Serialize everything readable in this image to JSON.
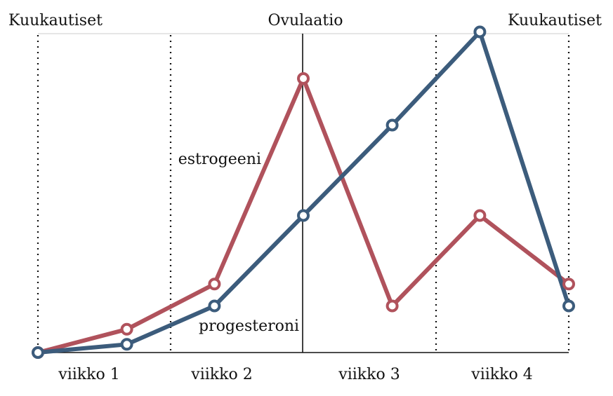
{
  "chart_data": {
    "type": "line",
    "title": "",
    "xlabel": "",
    "ylabel": "",
    "categories": [
      "viikko 1",
      "viikko 2",
      "viikko 3",
      "viikko 4"
    ],
    "markers": {
      "period_start": "Kuukautiset",
      "ovulation": "Ovulaatio",
      "period_end": "Kuukautiset"
    },
    "x_domain": [
      0,
      4
    ],
    "ylim": [
      0,
      10
    ],
    "ovulation_x": 2,
    "dotted_x": [
      0,
      1,
      3,
      4
    ],
    "series": [
      {
        "name": "estrogeeni",
        "color": "#b0525c",
        "points": [
          [
            0,
            0
          ],
          [
            0.67,
            0.85
          ],
          [
            1.33,
            2.5
          ],
          [
            2,
            10
          ],
          [
            2.67,
            1.7
          ],
          [
            3.33,
            5.0
          ],
          [
            4,
            2.5
          ]
        ]
      },
      {
        "name": "progesteroni",
        "color": "#3c5c7c",
        "points": [
          [
            0,
            0
          ],
          [
            0.67,
            0.3
          ],
          [
            1.33,
            1.7
          ],
          [
            2,
            5.0
          ],
          [
            2.67,
            8.3
          ],
          [
            3.33,
            11.7
          ],
          [
            4,
            1.7
          ]
        ]
      }
    ],
    "grid": false,
    "legend": "inline"
  }
}
